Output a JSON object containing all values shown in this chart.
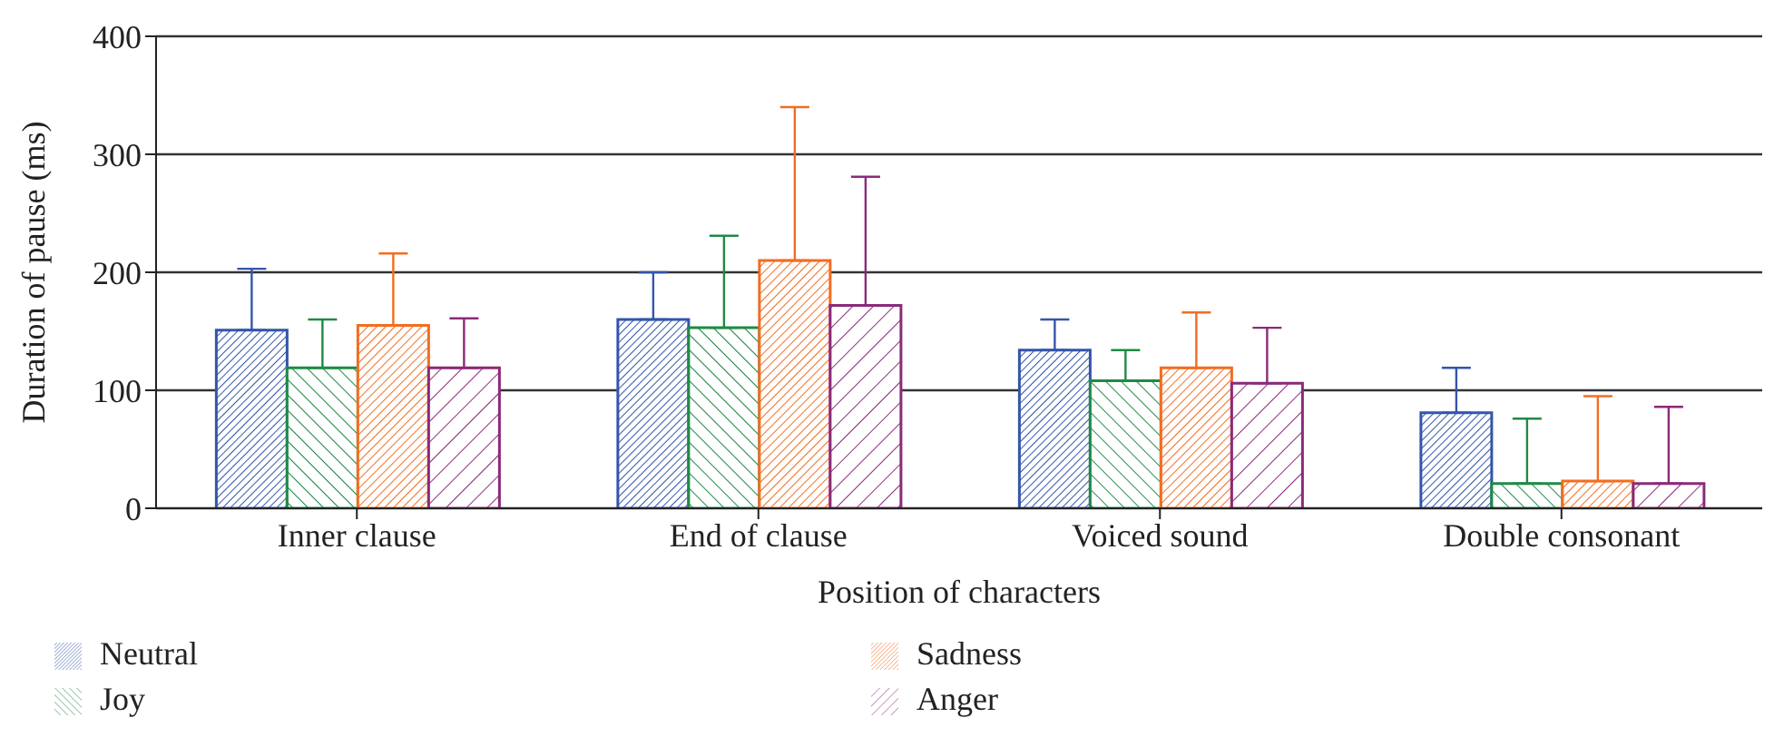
{
  "chart_data": {
    "type": "bar",
    "xlabel": "Position of characters",
    "ylabel": "Duration of pause (ms)",
    "categories": [
      "Inner clause",
      "End of clause",
      "Voiced sound",
      "Double consonant"
    ],
    "series": [
      {
        "name": "Neutral",
        "color": "#3355aa",
        "values": [
          151,
          160,
          134,
          81
        ],
        "errors": [
          [
            151,
            203
          ],
          [
            160,
            200
          ],
          [
            134,
            160
          ],
          [
            81,
            119
          ]
        ]
      },
      {
        "name": "Joy",
        "color": "#1f8a45",
        "values": [
          119,
          153,
          108,
          21
        ],
        "errors": [
          [
            119,
            160
          ],
          [
            153,
            231
          ],
          [
            108,
            134
          ],
          [
            21,
            76
          ]
        ]
      },
      {
        "name": "Sadness",
        "color": "#f26d21",
        "values": [
          155,
          210,
          119,
          23
        ],
        "errors": [
          [
            155,
            216
          ],
          [
            210,
            340
          ],
          [
            119,
            166
          ],
          [
            23,
            95
          ]
        ]
      },
      {
        "name": "Anger",
        "color": "#8b2a7a",
        "values": [
          119,
          172,
          106,
          21
        ],
        "errors": [
          [
            119,
            161
          ],
          [
            172,
            281
          ],
          [
            106,
            153
          ],
          [
            21,
            86
          ]
        ]
      }
    ],
    "ylim": [
      0,
      400
    ],
    "yticks": [
      0,
      100,
      200,
      300,
      400
    ],
    "grid": "y",
    "legend": "bottom"
  }
}
